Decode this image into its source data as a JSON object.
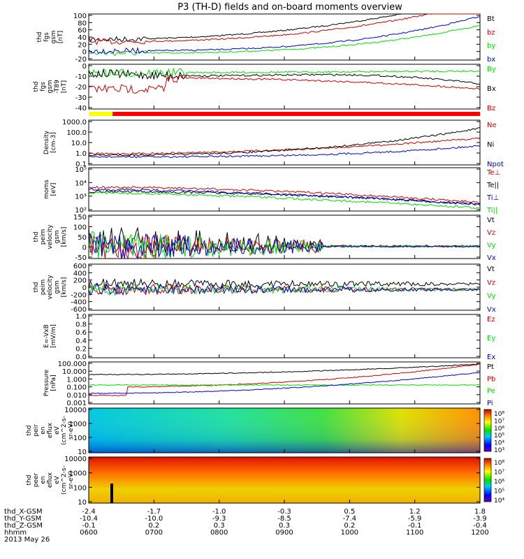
{
  "title": "P3 (TH-D) fields and on-board moments overview",
  "date": "2013 May 26",
  "time_label": "hhmm",
  "x_ticks": [
    "0600",
    "0700",
    "0800",
    "0900",
    "1000",
    "1100",
    "1200"
  ],
  "ephemeris": [
    {
      "label": "thd_X-GSM",
      "values": [
        "-2.4",
        "-1.7",
        "-1.0",
        "-0.3",
        "0.5",
        "1.2",
        "1.8"
      ]
    },
    {
      "label": "thd_Y-GSM",
      "values": [
        "-10.4",
        "-10.0",
        "-9.3",
        "-8.5",
        "-7.4",
        "-5.9",
        "-3.9"
      ]
    },
    {
      "label": "thd_Z-GSM",
      "values": [
        "-0.1",
        "0.2",
        "0.3",
        "0.3",
        "0.2",
        "-0.1",
        "-0.4"
      ]
    }
  ],
  "colors": {
    "black": "#000000",
    "red": "#d00000",
    "green": "#00e000",
    "blue": "#0000d0"
  },
  "chart_data": [
    {
      "type": "line",
      "ylabel": [
        "thd",
        "fgs",
        "gsm",
        "[nT]"
      ],
      "yticks": [
        "100",
        "80",
        "60",
        "40",
        "20",
        "0",
        "-20"
      ],
      "ylim": [
        -20,
        100
      ],
      "series": [
        {
          "name": "Bt",
          "color": "black"
        },
        {
          "name": "bz",
          "color": "red"
        },
        {
          "name": "by",
          "color": "green"
        },
        {
          "name": "bx",
          "color": "blue"
        }
      ]
    },
    {
      "type": "line",
      "ylabel": [
        "thd",
        "fgs",
        "gsm",
        "-T89",
        "[nT]"
      ],
      "yticks": [
        "0",
        "-10",
        "-20",
        "-30",
        "-40"
      ],
      "ylim": [
        -45,
        3
      ],
      "series": [
        {
          "name": "By",
          "color": "green"
        },
        {
          "name": "Bx",
          "color": "black"
        },
        {
          "name": "Bz",
          "color": "red"
        }
      ]
    },
    {
      "type": "line",
      "ylabel": [
        "Density",
        "[cm-3]"
      ],
      "log": true,
      "yticks": [
        "1000.0",
        "100.0",
        "10.0",
        "1.0",
        "0.1"
      ],
      "ylim": [
        0.1,
        1000
      ],
      "series": [
        {
          "name": "Ne",
          "color": "red"
        },
        {
          "name": "Ni",
          "color": "black"
        },
        {
          "name": "Npot",
          "color": "blue"
        }
      ]
    },
    {
      "type": "line",
      "ylabel": [
        "moms",
        "[eV]"
      ],
      "log": true,
      "yticks": [
        "10⁵",
        "10⁴",
        "10³",
        "10²"
      ],
      "ylim": [
        100,
        100000
      ],
      "series": [
        {
          "name": "Te⊥",
          "color": "red"
        },
        {
          "name": "Te||",
          "color": "black"
        },
        {
          "name": "Ti⊥",
          "color": "blue"
        },
        {
          "name": "Ti||",
          "color": "green"
        }
      ]
    },
    {
      "type": "line",
      "ylabel": [
        "thd",
        "peim",
        "velocity",
        "gsm",
        "[km/s]"
      ],
      "yticks": [
        "150",
        "100",
        "50",
        "0",
        "-50"
      ],
      "ylim": [
        -50,
        150
      ],
      "series": [
        {
          "name": "Vt",
          "color": "black"
        },
        {
          "name": "Vz",
          "color": "red"
        },
        {
          "name": "Vy",
          "color": "green"
        },
        {
          "name": "Vx",
          "color": "blue"
        }
      ]
    },
    {
      "type": "line",
      "ylabel": [
        "thd",
        "peim",
        "velocity",
        "gsm",
        "[km/s]"
      ],
      "yticks": [
        "600",
        "400",
        "200",
        "0",
        "-200",
        "-400",
        "-600"
      ],
      "ylim": [
        -600,
        600
      ],
      "series": [
        {
          "name": "Vt",
          "color": "black"
        },
        {
          "name": "Vz",
          "color": "red"
        },
        {
          "name": "Vy",
          "color": "green"
        },
        {
          "name": "Vx",
          "color": "blue"
        }
      ]
    },
    {
      "type": "line",
      "ylabel": [
        "E=-VxB",
        "[mV/m]"
      ],
      "yticks": [
        "1.0",
        "0.8",
        "0.6",
        "0.4",
        "0.2",
        "0.0"
      ],
      "ylim": [
        0,
        1
      ],
      "series": [
        {
          "name": "Ez",
          "color": "red"
        },
        {
          "name": "Ey",
          "color": "green"
        },
        {
          "name": "Ex",
          "color": "blue"
        }
      ]
    },
    {
      "type": "line",
      "ylabel": [
        "Pressure",
        "[nPa]"
      ],
      "log": true,
      "yticks": [
        "100.000",
        "10.000",
        "1.000",
        "0.100",
        "0.010",
        "0.001"
      ],
      "ylim": [
        0.001,
        100
      ],
      "series": [
        {
          "name": "Pt",
          "color": "black"
        },
        {
          "name": "Pb",
          "color": "red"
        },
        {
          "name": "Pe",
          "color": "green"
        },
        {
          "name": "Pi",
          "color": "blue"
        }
      ]
    },
    {
      "type": "heatmap",
      "ylabel": [
        "thd",
        "peir",
        "en",
        "eflux",
        "eV",
        "(cm^2-s-",
        "sr-eV)"
      ],
      "yticks": [
        "10000",
        "1000",
        "100",
        "10"
      ],
      "colorbar": [
        "10⁸",
        "10⁷",
        "10⁶",
        "10⁵",
        "10⁴",
        "10³"
      ]
    },
    {
      "type": "heatmap",
      "ylabel": [
        "thd",
        "peer",
        "en",
        "eflux",
        "eV",
        "(cm^2-s-",
        "sr-eV)"
      ],
      "yticks": [
        "10000",
        "1000",
        "100",
        "10"
      ],
      "colorbar": [
        "10⁸",
        "10⁷",
        "10⁶",
        "10⁵",
        "10⁴"
      ]
    }
  ]
}
